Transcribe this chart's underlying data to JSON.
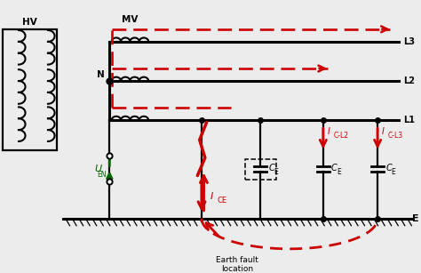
{
  "background_color": "#ececec",
  "line_color": "#000000",
  "red_color": "#cc0000",
  "green_color": "#006400",
  "hv_label": "HV",
  "mv_label": "MV",
  "n_label": "N",
  "l1_label": "L1",
  "l2_label": "L2",
  "l3_label": "L3",
  "e_label": "E",
  "earth_fault_label": "Earth fault\nlocation",
  "fig_w": 4.74,
  "fig_h": 3.07,
  "dpi": 100
}
